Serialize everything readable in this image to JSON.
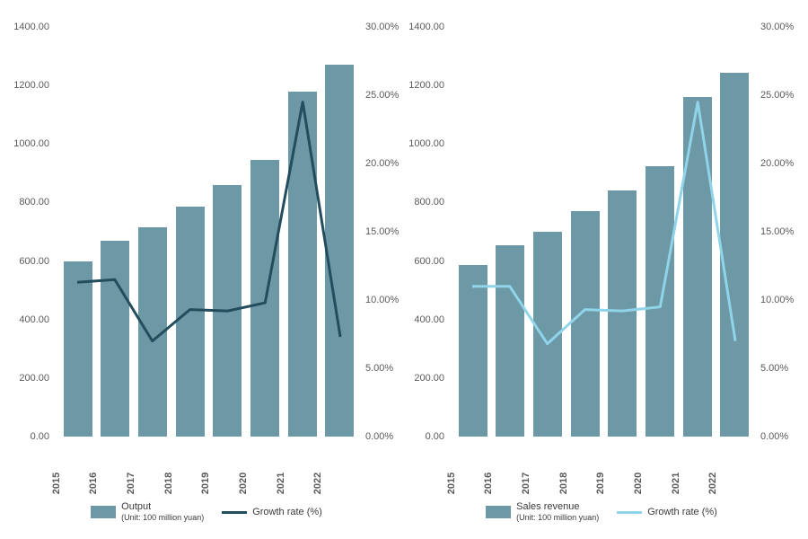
{
  "colors": {
    "bar": "#6d98a6",
    "line_dark": "#234d5c",
    "line_light": "#8fd4e8",
    "text": "#5a5a5a",
    "background": "#ffffff"
  },
  "font": {
    "axis_size": 11,
    "legend_size": 11
  },
  "left_chart": {
    "type": "bar+line",
    "categories": [
      "2015",
      "2016",
      "2017",
      "2018",
      "2019",
      "2020",
      "2021",
      "2022"
    ],
    "bar_series": {
      "label": "Output",
      "sublabel": "(Unit: 100 million yuan)",
      "color": "#6d98a6",
      "values": [
        600,
        670,
        715,
        785,
        860,
        945,
        1180,
        1270
      ]
    },
    "line_series": {
      "label": "Growth rate (%)",
      "color": "#234d5c",
      "width": 3,
      "values": [
        11.3,
        11.5,
        7.0,
        9.3,
        9.2,
        9.8,
        24.5,
        7.3
      ]
    },
    "y_left": {
      "min": 0,
      "max": 1400,
      "step": 200,
      "decimals": 2
    },
    "y_right": {
      "min": 0,
      "max": 30,
      "step": 5,
      "decimals": 2,
      "suffix": "%"
    }
  },
  "right_chart": {
    "type": "bar+line",
    "categories": [
      "2015",
      "2016",
      "2017",
      "2018",
      "2019",
      "2020",
      "2021",
      "2022"
    ],
    "bar_series": {
      "label": "Sales revenue",
      "sublabel": "(Unit: 100 million yuan)",
      "color": "#6d98a6",
      "values": [
        585,
        655,
        700,
        770,
        840,
        925,
        1160,
        1245
      ]
    },
    "line_series": {
      "label": "Growth rate (%)",
      "color": "#8fd4e8",
      "width": 3,
      "values": [
        11.0,
        11.0,
        6.8,
        9.3,
        9.2,
        9.5,
        24.5,
        7.0
      ]
    },
    "y_left": {
      "min": 0,
      "max": 1400,
      "step": 200,
      "decimals": 2
    },
    "y_right": {
      "min": 0,
      "max": 30,
      "step": 5,
      "decimals": 2,
      "suffix": "%"
    }
  }
}
